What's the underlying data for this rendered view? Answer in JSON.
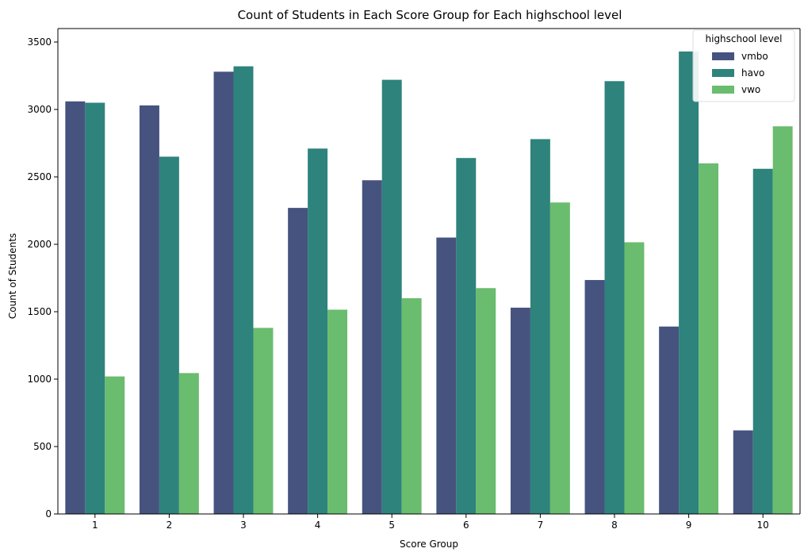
{
  "chart_data": {
    "type": "bar",
    "title": "Count of Students in Each Score Group for Each highschool level",
    "xlabel": "Score Group",
    "ylabel": "Count of Students",
    "categories": [
      "1",
      "2",
      "3",
      "4",
      "5",
      "6",
      "7",
      "8",
      "9",
      "10"
    ],
    "ylim": [
      0,
      3600
    ],
    "yticks": [
      0,
      500,
      1000,
      1500,
      2000,
      2500,
      3000,
      3500
    ],
    "grid": false,
    "legend": {
      "title": "highschool level",
      "placement": "top-right"
    },
    "series": [
      {
        "name": "vmbo",
        "color": "#46537f",
        "values": [
          3060,
          3030,
          3280,
          2270,
          2475,
          2050,
          1530,
          1735,
          1390,
          620
        ]
      },
      {
        "name": "havo",
        "color": "#2e837c",
        "values": [
          3050,
          2650,
          3320,
          2710,
          3220,
          2640,
          2780,
          3210,
          3430,
          2560
        ]
      },
      {
        "name": "vwo",
        "color": "#6abc6e",
        "values": [
          1020,
          1045,
          1380,
          1515,
          1600,
          1675,
          2310,
          2015,
          2600,
          2875
        ]
      }
    ]
  }
}
